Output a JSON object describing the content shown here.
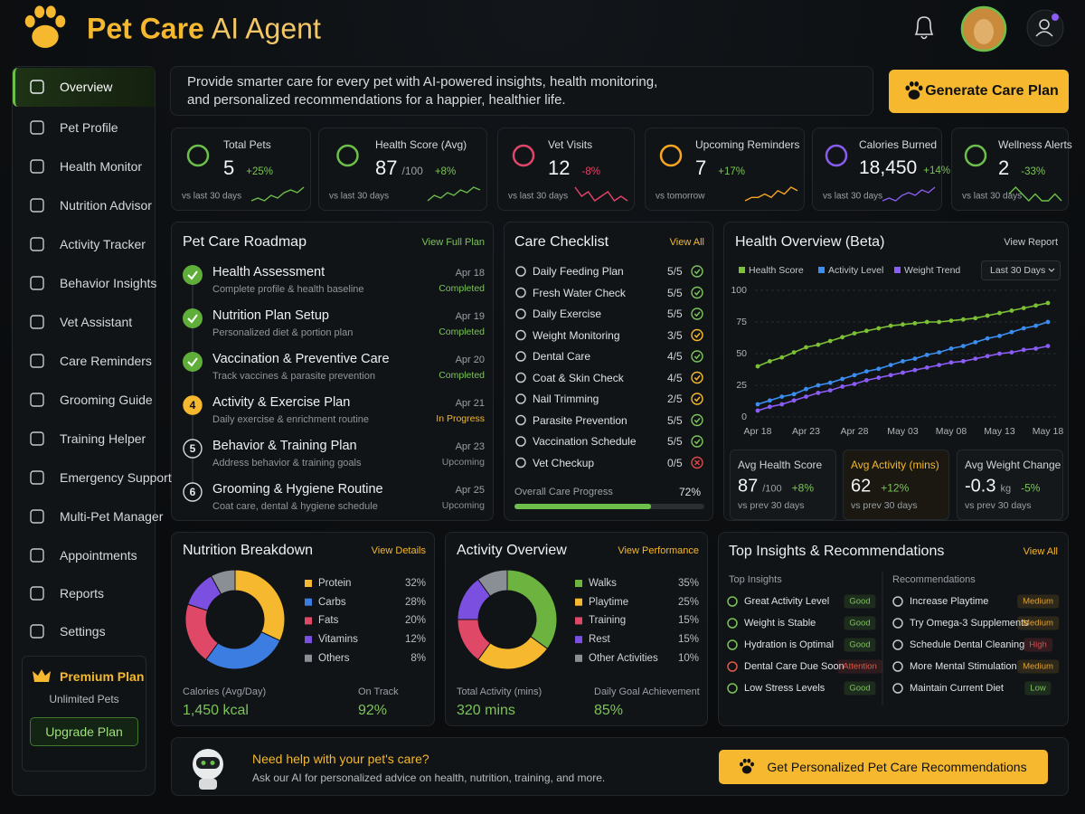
{
  "header": {
    "title_main": "Pet Care",
    "title_accent": "AI Agent"
  },
  "sidebar": {
    "items": [
      "Overview",
      "Pet Profile",
      "Health Monitor",
      "Nutrition Advisor",
      "Activity Tracker",
      "Behavior Insights",
      "Vet Assistant",
      "Care Reminders",
      "Grooming Guide",
      "Training Helper",
      "Emergency Support",
      "Multi-Pet Manager",
      "Appointments",
      "Reports",
      "Settings"
    ],
    "active": 0,
    "premium": {
      "title": "Premium Plan",
      "subtitle": "Unlimited Pets",
      "button": "Upgrade Plan"
    }
  },
  "intro": {
    "text": "Provide smarter care for every pet with AI-powered insights, health monitoring, and personalized recommendations for a happier, healthier life.",
    "button": "Generate Care Plan"
  },
  "stats": [
    {
      "label": "Total Pets",
      "value": "5",
      "change": "+25%",
      "note": "vs last 30 days",
      "color": "#6cc04a",
      "change_color": "#7cc35a",
      "sparkline": [
        3,
        4,
        3,
        5,
        4,
        6,
        7,
        6,
        8
      ]
    },
    {
      "label": "Health Score (Avg)",
      "value": "87",
      "unit": "/100",
      "change": "+8%",
      "note": "vs last 30 days",
      "color": "#6cc04a",
      "change_color": "#7cc35a",
      "sparkline": [
        3,
        5,
        4,
        6,
        5,
        7,
        6,
        8,
        7
      ]
    },
    {
      "label": "Vet Visits",
      "value": "12",
      "change": "-8%",
      "note": "vs last 30 days",
      "color": "#e0456a",
      "change_color": "#e0456a",
      "sparkline": [
        7,
        5,
        6,
        4,
        5,
        6,
        4,
        5,
        4
      ]
    },
    {
      "label": "Upcoming Reminders",
      "value": "7",
      "change": "+17%",
      "note": "vs tomorrow",
      "color": "#f5a623",
      "change_color": "#7cc35a",
      "sparkline": [
        3,
        4,
        4,
        5,
        4,
        6,
        5,
        7,
        6
      ]
    },
    {
      "label": "Calories Burned",
      "value": "18,450",
      "change": "+14%",
      "note": "vs last 30 days",
      "color": "#8a5cf0",
      "change_color": "#7cc35a",
      "sparkline": [
        3,
        4,
        3,
        5,
        6,
        5,
        7,
        6,
        8
      ]
    },
    {
      "label": "Wellness Alerts",
      "value": "2",
      "change": "-33%",
      "note": "vs last 30 days",
      "color": "#6cc04a",
      "change_color": "#7cc35a",
      "sparkline": [
        5,
        6,
        5,
        4,
        5,
        4,
        4,
        5,
        4
      ]
    }
  ],
  "roadmap": {
    "title": "Pet Care Roadmap",
    "link": "View Full Plan",
    "items": [
      {
        "title": "Health Assessment",
        "desc": "Complete profile & health baseline",
        "date": "Apr 18",
        "status": "Completed",
        "tone": "done"
      },
      {
        "title": "Nutrition Plan Setup",
        "desc": "Personalized diet & portion plan",
        "date": "Apr 19",
        "status": "Completed",
        "tone": "done"
      },
      {
        "title": "Vaccination & Preventive Care",
        "desc": "Track vaccines & parasite prevention",
        "date": "Apr 20",
        "status": "Completed",
        "tone": "done"
      },
      {
        "step": "4",
        "title": "Activity & Exercise Plan",
        "desc": "Daily exercise & enrichment routine",
        "date": "Apr 21",
        "status": "In Progress",
        "tone": "active"
      },
      {
        "step": "5",
        "title": "Behavior & Training Plan",
        "desc": "Address behavior & training goals",
        "date": "Apr 23",
        "status": "Upcoming",
        "tone": "upcoming"
      },
      {
        "step": "6",
        "title": "Grooming & Hygiene Routine",
        "desc": "Coat care, dental & hygiene schedule",
        "date": "Apr 25",
        "status": "Upcoming",
        "tone": "upcoming"
      }
    ]
  },
  "checklist": {
    "title": "Care Checklist",
    "link": "View All",
    "items": [
      {
        "name": "Daily Feeding Plan",
        "count": "5/5",
        "tone": "done"
      },
      {
        "name": "Fresh Water Check",
        "count": "5/5",
        "tone": "done"
      },
      {
        "name": "Daily Exercise",
        "count": "5/5",
        "tone": "done"
      },
      {
        "name": "Weight Monitoring",
        "count": "3/5",
        "tone": "partial"
      },
      {
        "name": "Dental Care",
        "count": "4/5",
        "tone": "done"
      },
      {
        "name": "Coat & Skin Check",
        "count": "4/5",
        "tone": "partial"
      },
      {
        "name": "Nail Trimming",
        "count": "2/5",
        "tone": "partial"
      },
      {
        "name": "Parasite Prevention",
        "count": "5/5",
        "tone": "done"
      },
      {
        "name": "Vaccination Schedule",
        "count": "5/5",
        "tone": "done"
      },
      {
        "name": "Vet Checkup",
        "count": "0/5",
        "tone": "missed"
      }
    ],
    "progress": {
      "label": "Overall Care Progress",
      "value": 72,
      "value_label": "72%",
      "color": "#6cc04a"
    }
  },
  "health": {
    "title": "Health Overview (Beta)",
    "link": "View Report",
    "range": "Last 30 Days",
    "chart": {
      "type": "line",
      "categories": [
        "Apr 18",
        null,
        null,
        null,
        "Apr 23",
        null,
        null,
        null,
        "Apr 28",
        null,
        null,
        null,
        "May 03",
        null,
        null,
        null,
        "May 08",
        null,
        null,
        null,
        "May 13",
        null,
        null,
        null,
        "May 18"
      ],
      "series": [
        {
          "name": "Health Score",
          "color": "#7cc035",
          "values": [
            40,
            44,
            47,
            51,
            55,
            57,
            60,
            63,
            66,
            68,
            70,
            72,
            73,
            74,
            75,
            75,
            76,
            77,
            78,
            80,
            82,
            84,
            86,
            88,
            90
          ]
        },
        {
          "name": "Activity Level",
          "color": "#3b8ef0",
          "values": [
            10,
            13,
            16,
            18,
            22,
            25,
            27,
            30,
            33,
            36,
            38,
            41,
            44,
            46,
            49,
            51,
            54,
            56,
            59,
            62,
            64,
            67,
            70,
            72,
            75
          ]
        },
        {
          "name": "Weight Trend",
          "color": "#8b5cf6",
          "values": [
            5,
            8,
            10,
            13,
            16,
            19,
            21,
            24,
            26,
            29,
            31,
            33,
            35,
            37,
            39,
            41,
            43,
            44,
            46,
            48,
            50,
            51,
            53,
            54,
            56
          ]
        }
      ],
      "ylim": [
        0,
        100
      ],
      "yticks": [
        0,
        25,
        50,
        75,
        100
      ],
      "grid": true
    },
    "cards": [
      {
        "label": "Avg Health Score",
        "value": "87",
        "unit": "/100",
        "change": "+8%",
        "note": "vs prev 30 days",
        "highlight": false
      },
      {
        "label": "Avg Activity (mins)",
        "value": "62",
        "change": "+12%",
        "note": "vs prev 30 days",
        "highlight": true
      },
      {
        "label": "Avg Weight Change",
        "value": "-0.3",
        "unit": "kg",
        "change": "-5%",
        "note": "vs prev 30 days",
        "highlight": false
      }
    ]
  },
  "nutrition": {
    "title": "Nutrition Breakdown",
    "link": "View Details",
    "chart": {
      "type": "pie",
      "categories": [
        "Protein",
        "Carbs",
        "Fats",
        "Vitamins",
        "Others"
      ],
      "values": [
        32,
        28,
        20,
        12,
        8
      ],
      "value_labels": [
        "32%",
        "28%",
        "20%",
        "12%",
        "8%"
      ],
      "colors": [
        "#f5b82e",
        "#3b7de0",
        "#e04868",
        "#7b4fe0",
        "#8a8f96"
      ]
    },
    "stats": [
      {
        "label": "Calories (Avg/Day)",
        "value": "1,450 kcal"
      },
      {
        "label": "On Track",
        "value": "92%"
      }
    ]
  },
  "activity": {
    "title": "Activity Overview",
    "link": "View Performance",
    "chart": {
      "type": "pie",
      "categories": [
        "Walks",
        "Playtime",
        "Training",
        "Rest",
        "Other Activities"
      ],
      "values": [
        35,
        25,
        15,
        15,
        10
      ],
      "value_labels": [
        "35%",
        "25%",
        "15%",
        "15%",
        "10%"
      ],
      "colors": [
        "#6cb33f",
        "#f5b82e",
        "#e04868",
        "#7b4fe0",
        "#8a8f96"
      ]
    },
    "stats": [
      {
        "label": "Total Activity (mins)",
        "value": "320 mins"
      },
      {
        "label": "Daily Goal Achievement",
        "value": "85%"
      }
    ]
  },
  "insights": {
    "title": "Top Insights & Recommendations",
    "link": "View All",
    "insights": {
      "heading": "Top Insights",
      "items": [
        {
          "name": "Great Activity Level",
          "badge": "Good",
          "tone": "good"
        },
        {
          "name": "Weight is Stable",
          "badge": "Good",
          "tone": "good"
        },
        {
          "name": "Hydration is Optimal",
          "badge": "Good",
          "tone": "good"
        },
        {
          "name": "Dental Care Due Soon",
          "badge": "Attention",
          "tone": "attention"
        },
        {
          "name": "Low Stress Levels",
          "badge": "Good",
          "tone": "good"
        }
      ]
    },
    "recommendations": {
      "heading": "Recommendations",
      "items": [
        {
          "name": "Increase Playtime",
          "badge": "Medium",
          "tone": "medium"
        },
        {
          "name": "Try Omega-3 Supplements",
          "badge": "Medium",
          "tone": "medium"
        },
        {
          "name": "Schedule Dental Cleaning",
          "badge": "High",
          "tone": "high"
        },
        {
          "name": "More Mental Stimulation",
          "badge": "Medium",
          "tone": "medium"
        },
        {
          "name": "Maintain Current Diet",
          "badge": "Low",
          "tone": "good"
        }
      ]
    }
  },
  "help": {
    "title": "Need help with your pet's care?",
    "text": "Ask our AI for personalized advice on health, nutrition, training, and more.",
    "button": "Get Personalized Pet Care Recommendations"
  }
}
